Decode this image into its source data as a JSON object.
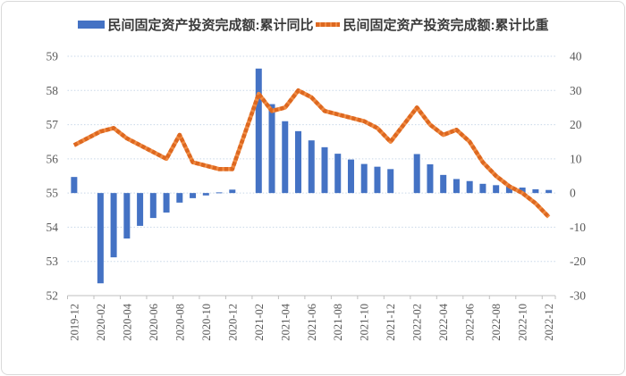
{
  "legend": [
    {
      "label": "民间固定资产投资完成额:累计同比",
      "swatch": "bar"
    },
    {
      "label": "民间固定资产投资完成额:累计比重",
      "swatch": "dashed-line"
    }
  ],
  "colors": {
    "bar_blue": "#4472C4",
    "line_orange": "#F08A42",
    "line_orange_dash": "#DD6820",
    "gridline": "#C8D7E8",
    "axis_line": "#BFBFBF",
    "axis_text": "#595959"
  },
  "chart_data": {
    "type": "combo",
    "title": "",
    "legend_position": "top",
    "grid": true,
    "categories": [
      "2019-12",
      "2020-01",
      "2020-02",
      "2020-03",
      "2020-04",
      "2020-05",
      "2020-06",
      "2020-07",
      "2020-08",
      "2020-09",
      "2020-10",
      "2020-11",
      "2020-12",
      "2021-01",
      "2021-02",
      "2021-03",
      "2021-04",
      "2021-05",
      "2021-06",
      "2021-07",
      "2021-08",
      "2021-09",
      "2021-10",
      "2021-11",
      "2021-12",
      "2022-01",
      "2022-02",
      "2022-03",
      "2022-04",
      "2022-05",
      "2022-06",
      "2022-07",
      "2022-08",
      "2022-09",
      "2022-10",
      "2022-11",
      "2022-12"
    ],
    "x_tick_labels": [
      "2019-12",
      "2020-02",
      "2020-04",
      "2020-06",
      "2020-08",
      "2020-10",
      "2020-12",
      "2021-02",
      "2021-04",
      "2021-06",
      "2021-08",
      "2021-10",
      "2021-12",
      "2022-02",
      "2022-04",
      "2022-06",
      "2022-08",
      "2022-10",
      "2022-12"
    ],
    "x_tick_every": 2,
    "series": [
      {
        "name": "民间固定资产投资完成额:累计同比",
        "type": "bar",
        "axis": "right",
        "values": [
          4.7,
          null,
          -26.4,
          -18.8,
          -13.3,
          -9.6,
          -7.3,
          -5.7,
          -2.8,
          -1.5,
          -0.7,
          0.2,
          1.0,
          null,
          36.4,
          26.0,
          21.0,
          18.1,
          15.4,
          13.4,
          11.5,
          9.8,
          8.5,
          7.7,
          7.0,
          null,
          11.4,
          8.4,
          5.3,
          4.1,
          3.5,
          2.7,
          2.3,
          2.0,
          1.6,
          1.1,
          0.9
        ]
      },
      {
        "name": "民间固定资产投资完成额:累计比重",
        "type": "line",
        "axis": "left",
        "values": [
          56.4,
          null,
          56.8,
          56.9,
          56.6,
          56.4,
          56.2,
          56.0,
          56.7,
          55.9,
          55.8,
          55.7,
          55.7,
          null,
          57.9,
          57.4,
          57.5,
          58.0,
          57.8,
          57.4,
          57.3,
          57.2,
          57.1,
          56.9,
          56.5,
          null,
          57.5,
          57.0,
          56.7,
          56.85,
          56.5,
          55.9,
          55.5,
          55.2,
          55.0,
          54.7,
          54.3
        ]
      }
    ],
    "left_axis": {
      "min": 52,
      "max": 59,
      "step": 1,
      "tick_labels": [
        "52",
        "53",
        "54",
        "55",
        "56",
        "57",
        "58",
        "59"
      ]
    },
    "right_axis": {
      "min": -30,
      "max": 40,
      "step": 10,
      "tick_labels": [
        "-30",
        "-20",
        "-10",
        "0",
        "10",
        "20",
        "30",
        "40"
      ]
    }
  }
}
